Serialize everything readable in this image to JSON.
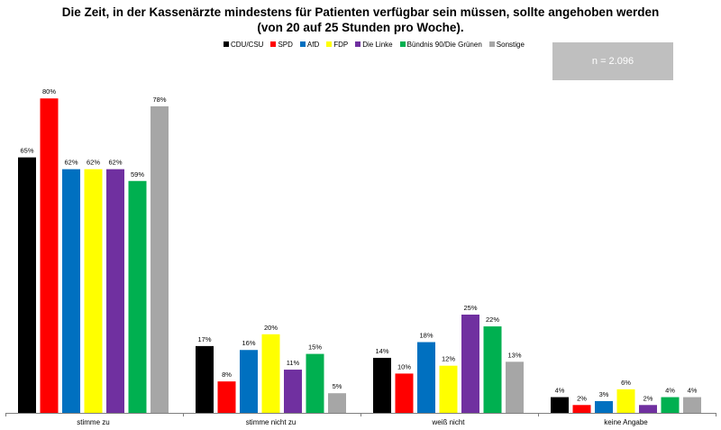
{
  "chart_data": {
    "type": "bar",
    "title_line1": "Die Zeit, in der Kassenärzte mindestens für Patienten verfügbar sein müssen, sollte angehoben werden",
    "title_line2": "(von 20 auf 25 Stunden pro Woche).",
    "sample_note": "n = 2.096",
    "categories": [
      "stimme zu",
      "stimme nicht zu",
      "weiß nicht",
      "keine Angabe"
    ],
    "ylim": [
      0,
      100
    ],
    "grid": false,
    "legend_position": "top",
    "series": [
      {
        "name": "CDU/CSU",
        "color": "#000000",
        "values": [
          65,
          17,
          14,
          4
        ]
      },
      {
        "name": "SPD",
        "color": "#ff0000",
        "values": [
          80,
          8,
          10,
          2
        ]
      },
      {
        "name": "AfD",
        "color": "#0070c0",
        "values": [
          62,
          16,
          18,
          3
        ]
      },
      {
        "name": "FDP",
        "color": "#ffff00",
        "values": [
          62,
          20,
          12,
          6
        ]
      },
      {
        "name": "Die Linke",
        "color": "#7030a0",
        "values": [
          62,
          11,
          25,
          2
        ]
      },
      {
        "name": "Bündnis 90/Die Grünen",
        "color": "#00b050",
        "values": [
          59,
          15,
          22,
          4
        ]
      },
      {
        "name": "Sonstige",
        "color": "#a6a6a6",
        "values": [
          78,
          5,
          13,
          4
        ]
      }
    ]
  }
}
